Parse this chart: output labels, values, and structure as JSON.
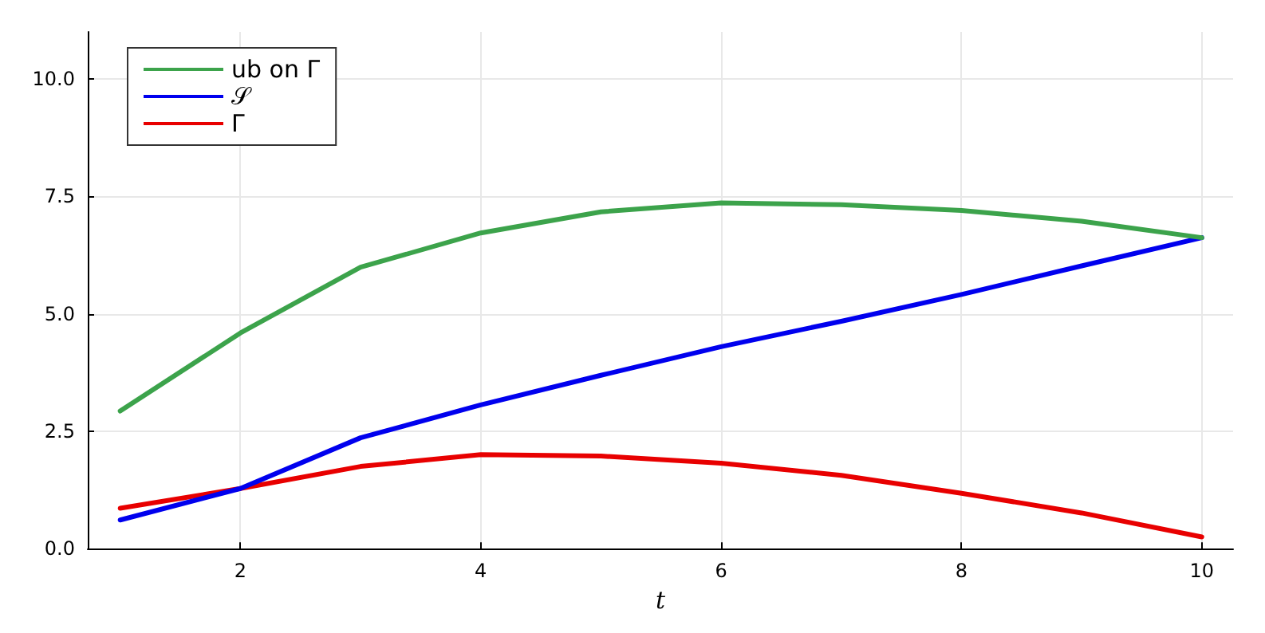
{
  "chart_data": {
    "type": "line",
    "xlabel": "t",
    "x": [
      1,
      2,
      3,
      4,
      5,
      6,
      7,
      8,
      9,
      10
    ],
    "series": [
      {
        "name": "ub on Γ",
        "color": "#3ca34b",
        "values": [
          2.93,
          4.59,
          5.99,
          6.72,
          7.17,
          7.36,
          7.32,
          7.2,
          6.97,
          6.62
        ]
      },
      {
        "name": "𝒮",
        "color": "#0000ee",
        "values": [
          0.61,
          1.28,
          2.36,
          3.06,
          3.69,
          4.3,
          4.84,
          5.41,
          6.02,
          6.62
        ]
      },
      {
        "name": "Γ",
        "color": "#e80000",
        "values": [
          0.86,
          1.28,
          1.75,
          2.0,
          1.97,
          1.82,
          1.56,
          1.18,
          0.76,
          0.25
        ]
      }
    ],
    "xlim": [
      0.73,
      10.26
    ],
    "xticks": [
      2,
      4,
      6,
      8,
      10
    ],
    "ylim": [
      0,
      11
    ],
    "yticks": [
      {
        "value": 0,
        "label": "0.0"
      },
      2.5,
      {
        "value": 5,
        "label": "5.0"
      },
      7.5,
      {
        "value": 10,
        "label": "10.0"
      }
    ],
    "grid": true,
    "legend": "top left",
    "marker": "none",
    "line_style": "solid"
  }
}
